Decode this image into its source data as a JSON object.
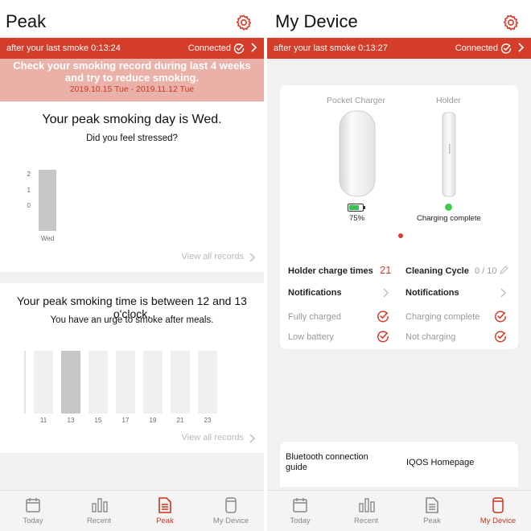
{
  "colors": {
    "accent": "#d33d2a",
    "pink": "#eab1a8",
    "bar_active": "#c6c6c6",
    "bar_inactive": "#efefef"
  },
  "left": {
    "title": "Peak",
    "status_bar": {
      "timer": "after your last smoke 0:13:24",
      "connection": "Connected"
    },
    "banner": {
      "message": "Check your smoking record during last 4 weeks and try to reduce smoking.",
      "dates": "2019.10.15 Tue - 2019.11.12 Tue"
    },
    "day_card": {
      "heading": "Your peak smoking day is Wed.",
      "subheading": "Did you feel stressed?",
      "view_all": "View all records"
    },
    "time_card": {
      "heading": "Your peak smoking time is between 12 and 13 o'clock.",
      "subheading": "You have an urge to smoke after meals.",
      "view_all": "View all records"
    }
  },
  "right": {
    "title": "My Device",
    "status_bar": {
      "timer": "after your last smoke 0:13:27",
      "connection": "Connected"
    },
    "device": {
      "pocket_charger_label": "Pocket Charger",
      "holder_label": "Holder",
      "battery_percent": "75%",
      "battery_level": 0.75,
      "holder_status": "Charging complete",
      "holder_charge_times_label": "Holder charge times",
      "holder_charge_times_value": "21",
      "cleaning_cycle_label": "Cleaning Cycle",
      "cleaning_cycle_value": "0 / 10",
      "notifications_left": "Notifications",
      "notifications_right": "Notifications",
      "fully_charged": "Fully charged",
      "low_battery": "Low battery",
      "charging_complete": "Charging complete",
      "not_charging": "Not charging"
    },
    "links": {
      "bluetooth": "Bluetooth connection guide",
      "homepage": "IQOS Homepage"
    }
  },
  "tabs": [
    {
      "label": "Today",
      "icon": "calendar-icon"
    },
    {
      "label": "Recent",
      "icon": "bar-chart-icon"
    },
    {
      "label": "Peak",
      "icon": "document-icon"
    },
    {
      "label": "My Device",
      "icon": "device-icon"
    }
  ],
  "chart_data": [
    {
      "type": "bar",
      "categories": [
        "Wed"
      ],
      "values": [
        2
      ],
      "y_ticks": [
        "2",
        "1",
        "0"
      ],
      "ylim": [
        0,
        2
      ],
      "grid": false
    },
    {
      "type": "bar",
      "categories": [
        "11",
        "13",
        "15",
        "17",
        "19",
        "21",
        "23"
      ],
      "highlight": "13",
      "grid": false
    }
  ]
}
